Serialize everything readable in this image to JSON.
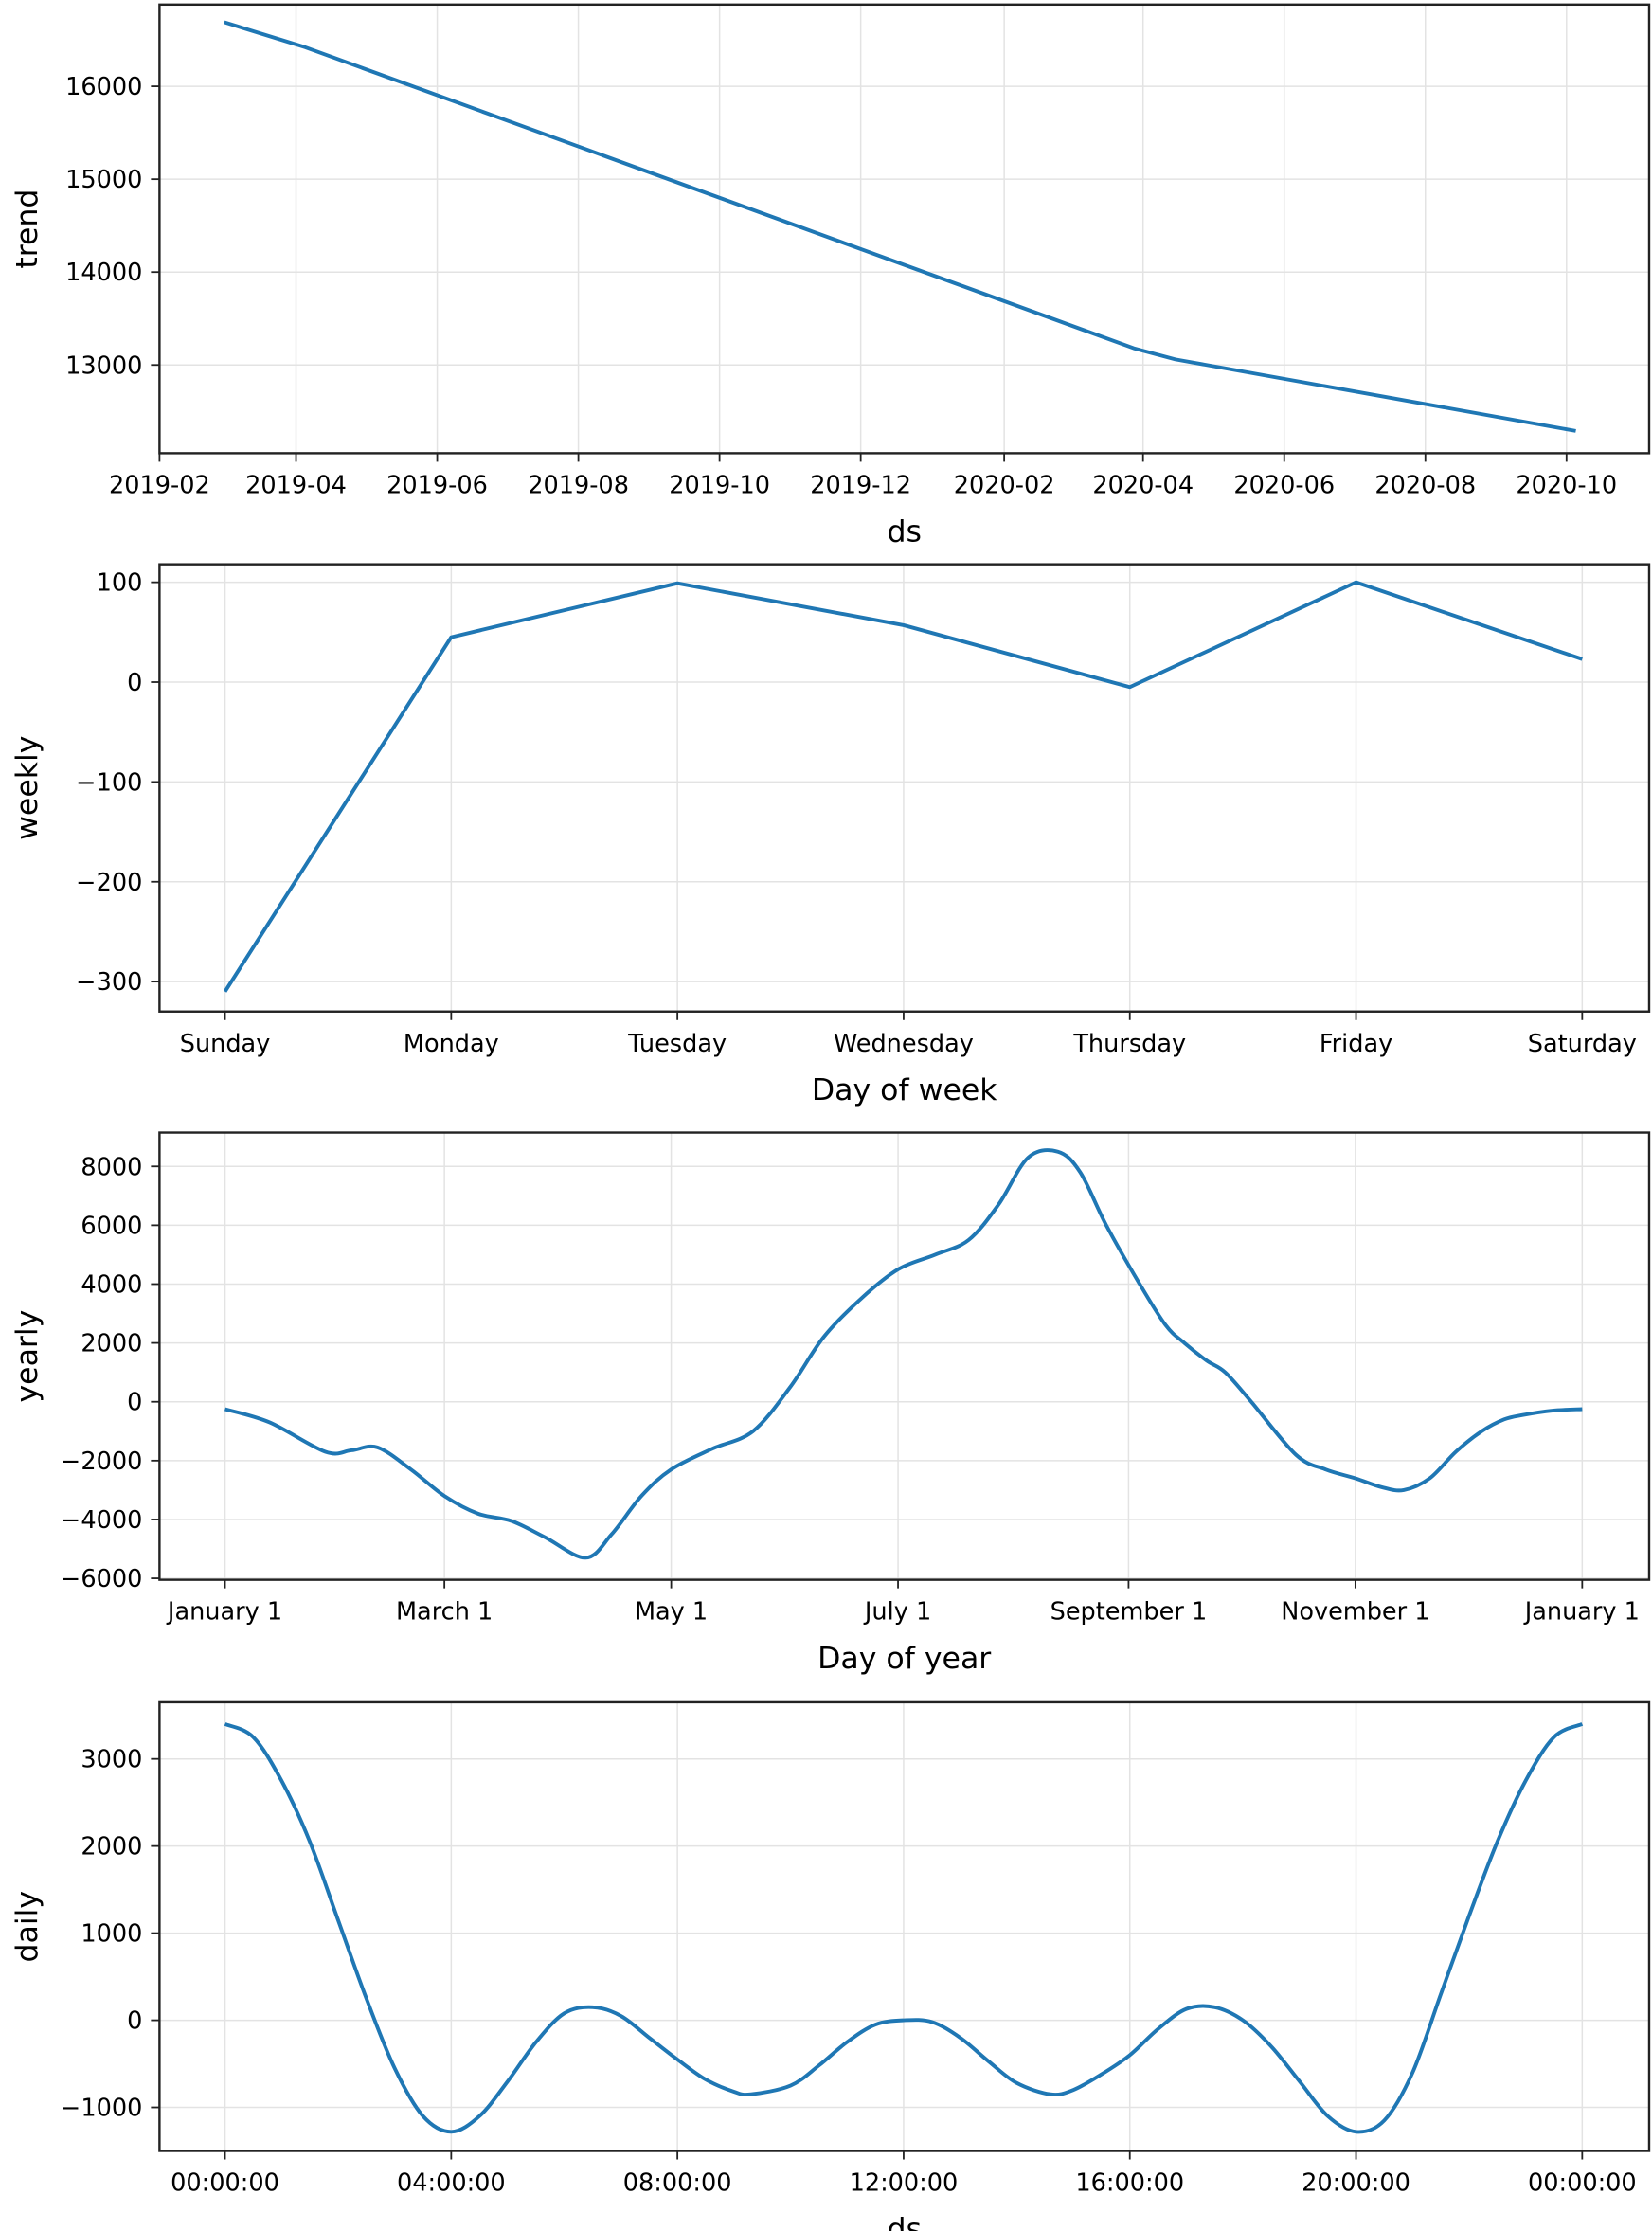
{
  "colors": {
    "line": "#1f77b4",
    "grid": "#e3e3e3",
    "frame": "#222222"
  },
  "chart_data": [
    {
      "type": "line",
      "xlabel": "ds",
      "ylabel": "trend",
      "grid": true,
      "x_ticks": [
        "2019-02",
        "2019-04",
        "2019-06",
        "2019-08",
        "2019-10",
        "2019-12",
        "2020-02",
        "2020-04",
        "2020-06",
        "2020-08",
        "2020-10"
      ],
      "y_ticks": [
        13000,
        14000,
        15000,
        16000
      ],
      "xlim": [
        "2019-02-01",
        "2020-11-01"
      ],
      "ylim": [
        12050,
        16880
      ],
      "x": [
        "2019-03-01",
        "2019-04-05",
        "2020-03-28",
        "2020-04-15",
        "2020-10-05"
      ],
      "y": [
        16690,
        16420,
        13180,
        13060,
        12290
      ]
    },
    {
      "type": "line",
      "xlabel": "Day of week",
      "ylabel": "weekly",
      "grid": true,
      "categories": [
        "Sunday",
        "Monday",
        "Tuesday",
        "Wednesday",
        "Thursday",
        "Friday",
        "Saturday"
      ],
      "y_ticks": [
        -300,
        -200,
        -100,
        0,
        100
      ],
      "ylim": [
        -330,
        118
      ],
      "values": [
        -310,
        45,
        99,
        57,
        -5,
        100,
        23
      ]
    },
    {
      "type": "line",
      "xlabel": "Day of year",
      "ylabel": "yearly",
      "grid": true,
      "x_ticks": [
        "January 1",
        "March 1",
        "May 1",
        "July 1",
        "September 1",
        "November 1",
        "January 1"
      ],
      "x_tick_days": [
        0,
        59,
        120,
        181,
        243,
        304,
        365
      ],
      "y_ticks": [
        -6000,
        -4000,
        -2000,
        0,
        2000,
        4000,
        6000,
        8000
      ],
      "ylim": [
        -6050,
        9150
      ],
      "x": [
        0,
        12,
        27,
        34,
        41,
        50,
        59,
        68,
        77,
        86,
        97,
        104,
        112,
        120,
        131,
        142,
        152,
        161,
        171,
        181,
        191,
        200,
        208,
        216,
        224,
        230,
        237,
        246,
        253,
        258,
        264,
        269,
        276,
        288,
        296,
        304,
        311,
        317,
        324,
        331,
        338,
        344,
        349,
        357,
        365
      ],
      "y": [
        -250,
        -700,
        -1700,
        -1650,
        -1550,
        -2300,
        -3200,
        -3800,
        -4050,
        -4600,
        -5300,
        -4500,
        -3200,
        -2300,
        -1600,
        -1000,
        500,
        2200,
        3500,
        4500,
        5000,
        5500,
        6700,
        8300,
        8500,
        7800,
        6000,
        4000,
        2600,
        2000,
        1400,
        1000,
        0,
        -1800,
        -2300,
        -2600,
        -2900,
        -3000,
        -2600,
        -1700,
        -1000,
        -600,
        -450,
        -300,
        -250
      ]
    },
    {
      "type": "line",
      "xlabel": "ds",
      "ylabel": "daily",
      "grid": true,
      "x_ticks": [
        "00:00:00",
        "04:00:00",
        "08:00:00",
        "12:00:00",
        "16:00:00",
        "20:00:00",
        "00:00:00"
      ],
      "y_ticks": [
        -1000,
        0,
        1000,
        2000,
        3000
      ],
      "ylim": [
        -1500,
        3650
      ],
      "x_hours": [
        0,
        0.5,
        1,
        1.5,
        2,
        2.5,
        3,
        3.5,
        4,
        4.5,
        5,
        5.5,
        6,
        6.5,
        7,
        7.5,
        8,
        8.5,
        9,
        9.3,
        10,
        10.5,
        11,
        11.5,
        12,
        12.5,
        13,
        13.5,
        14,
        14.6,
        15,
        15.5,
        16,
        16.5,
        17,
        17.5,
        18,
        18.5,
        19,
        19.5,
        20,
        20.5,
        21,
        21.5,
        22,
        22.5,
        23,
        23.5,
        24
      ],
      "y": [
        3400,
        3250,
        2750,
        2050,
        1150,
        250,
        -550,
        -1100,
        -1280,
        -1100,
        -700,
        -250,
        80,
        150,
        50,
        -200,
        -450,
        -680,
        -820,
        -850,
        -750,
        -520,
        -250,
        -50,
        0,
        -20,
        -200,
        -470,
        -720,
        -850,
        -800,
        -620,
        -400,
        -100,
        130,
        150,
        0,
        -300,
        -700,
        -1100,
        -1280,
        -1150,
        -600,
        300,
        1200,
        2050,
        2750,
        3250,
        3400
      ]
    }
  ]
}
